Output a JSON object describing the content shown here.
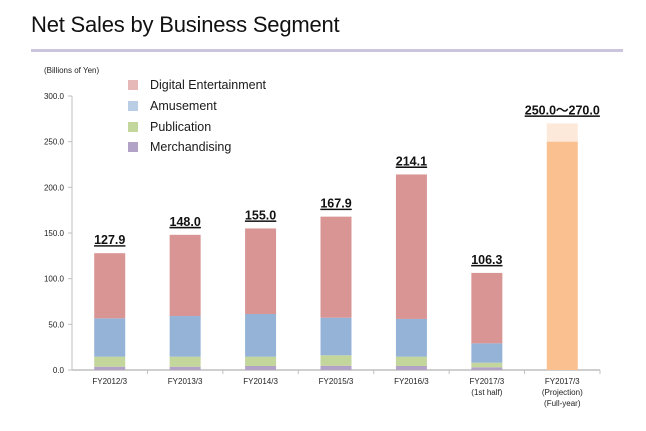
{
  "page": {
    "title": "Net Sales by Business Segment",
    "unit_label": "(Billions of Yen)"
  },
  "chart_data": {
    "type": "bar",
    "stacked": true,
    "title": "Net Sales by Business Segment",
    "ylabel": "(Billions of Yen)",
    "xlabel": "",
    "ylim": [
      0,
      300
    ],
    "yticks": [
      "0.0",
      "50.0",
      "100.0",
      "150.0",
      "200.0",
      "250.0",
      "300.0"
    ],
    "ytick_values": [
      0,
      50,
      100,
      150,
      200,
      250,
      300
    ],
    "grid": false,
    "legend_position": "top-left",
    "categories": [
      [
        "FY2012/3"
      ],
      [
        "FY2013/3"
      ],
      [
        "FY2014/3"
      ],
      [
        "FY2015/3"
      ],
      [
        "FY2016/3"
      ],
      [
        "FY2017/3",
        "(1st half)"
      ],
      [
        "FY2017/3",
        "(Projection)",
        "(Full-year)"
      ]
    ],
    "series": [
      {
        "name": "Merchandising",
        "color": "#b3a2c7",
        "legend_color": "#b3a2c7",
        "values": [
          3.6,
          3.6,
          4.4,
          4.7,
          4.4,
          3.0,
          null
        ]
      },
      {
        "name": "Publication",
        "color": "#c3d69b",
        "legend_color": "#c3d69b",
        "values": [
          11.0,
          11.0,
          10.2,
          11.4,
          10.2,
          5.0,
          null
        ]
      },
      {
        "name": "Amusement",
        "color": "#95b3d7",
        "legend_color": "#b9cde5",
        "values": [
          42.0,
          44.5,
          46.7,
          41.2,
          41.3,
          21.2,
          null
        ]
      },
      {
        "name": "Digital Entertainment",
        "color": "#d99594",
        "legend_color": "#e6b9b8",
        "values": [
          71.3,
          88.9,
          93.7,
          110.6,
          158.2,
          77.1,
          null
        ]
      }
    ],
    "legend_order": [
      "Digital Entertainment",
      "Amusement",
      "Publication",
      "Merchandising"
    ],
    "totals": [
      "127.9",
      "148.0",
      "155.0",
      "167.9",
      "214.1",
      "106.3",
      "250.0～270.0"
    ],
    "total_values": [
      127.9,
      148.0,
      155.0,
      167.9,
      214.1,
      106.3,
      250.0
    ],
    "projection": {
      "category_index": 6,
      "low": 250.0,
      "high": 270.0,
      "color": "#fac090",
      "range_color": "#fde9d9"
    }
  }
}
